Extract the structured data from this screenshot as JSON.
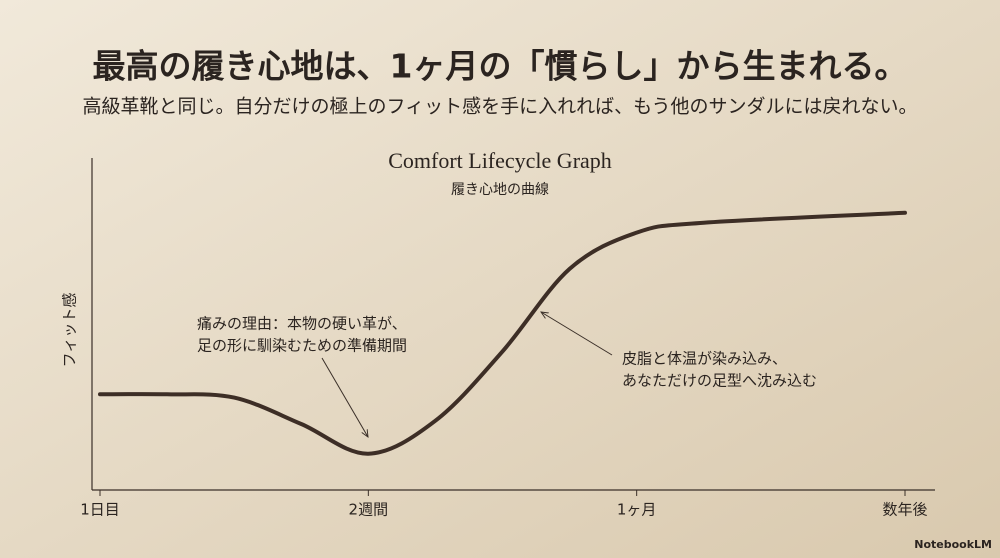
{
  "header": {
    "title": "最高の履き心地は、1ヶ月の「慣らし」から生まれる。",
    "subtitle": "高級革靴と同じ。自分だけの極上のフィット感を手に入れれば、もう他のサンダルには戻れない。"
  },
  "chart_data": {
    "type": "line",
    "title": "Comfort Lifecycle Graph",
    "subtitle": "履き心地の曲線",
    "y_label": "フィット感",
    "xlim": [
      0,
      3
    ],
    "ylim": [
      0,
      100
    ],
    "xticks": [
      {
        "value": 0,
        "label": "1日目"
      },
      {
        "value": 1,
        "label": "2週間"
      },
      {
        "value": 2,
        "label": "1ヶ月"
      },
      {
        "value": 3,
        "label": "数年後"
      }
    ],
    "series": [
      {
        "color": "#3d2e26",
        "x": [
          0,
          0.25,
          0.5,
          0.75,
          1,
          1.25,
          1.5,
          1.75,
          2,
          2.25,
          3
        ],
        "values": [
          29,
          29,
          28,
          20,
          11,
          21,
          42,
          67,
          78,
          81,
          84
        ]
      }
    ],
    "annotations": [
      {
        "lines": [
          "痛みの理由：本物の硬い革が、",
          "足の形に馴染むための準備期間"
        ]
      },
      {
        "lines": [
          "皮脂と体温が染み込み、",
          "あなただけの足型へ沈み込む"
        ]
      }
    ]
  },
  "footer": {
    "brand": "NotebookLM"
  }
}
